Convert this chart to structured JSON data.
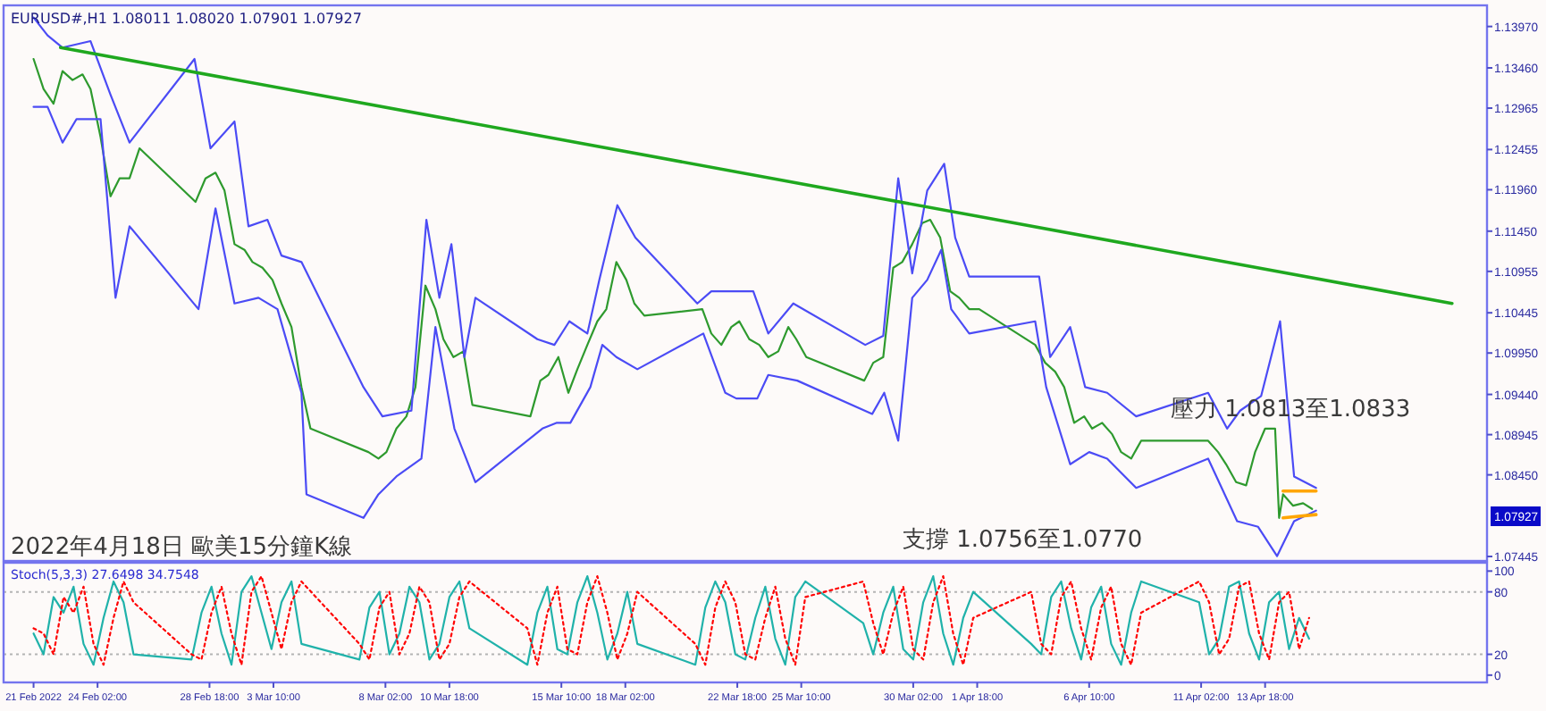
{
  "chart_data": [
    {
      "type": "line",
      "title": "EURUSD#,H1  1.08011 1.08020 1.07901 1.07927",
      "annotations": [
        "2022年4月18日 歐美15分鐘K線",
        "支撐 1.0756至1.0770",
        "壓力 1.0813至1.0833",
        "1.07927"
      ],
      "xlim": [
        "2022-02-20T04:00",
        "2022-04-23T00:00"
      ],
      "ylim": [
        1.0739,
        1.1423
      ],
      "yticks": [
        1.07445,
        {
          "value": 1.0845,
          "label": "1.08450"
        },
        1.08945,
        {
          "value": 1.0944,
          "label": "1.09440"
        },
        {
          "value": 1.0995,
          "label": "1.09950"
        },
        1.10445,
        1.10955,
        {
          "value": 1.1145,
          "label": "1.11450"
        },
        {
          "value": 1.1196,
          "label": "1.11960"
        },
        1.12455,
        1.12965,
        {
          "value": 1.1346,
          "label": "1.13460"
        },
        {
          "value": 1.1397,
          "label": "1.13970"
        }
      ],
      "tick_labels": "y",
      "series": [
        {
          "color": "#2e9a2e",
          "x": [
            "2022-02-21T10:00",
            "2022-02-21T20:00",
            "2022-02-22T06:00",
            "2022-02-22T15:00",
            "2022-02-23T01:00",
            "2022-02-23T11:00",
            "2022-02-23T19:00",
            "2022-02-24T05:00",
            "2022-02-24T15:00",
            "2022-02-25T00:00",
            "2022-02-25T10:00",
            "2022-02-25T20:00",
            "2022-02-28T04:00",
            "2022-02-28T14:00",
            "2022-03-01T00:00",
            "2022-03-01T09:00",
            "2022-03-01T19:00",
            "2022-03-02T05:00",
            "2022-03-02T13:00",
            "2022-03-02T23:00",
            "2022-03-03T09:00",
            "2022-03-03T18:00",
            "2022-03-04T04:00",
            "2022-03-04T14:00",
            "2022-03-04T23:00",
            "2022-03-07T09:00",
            "2022-03-07T19:00",
            "2022-03-08T03:00",
            "2022-03-08T13:00",
            "2022-03-08T23:00",
            "2022-03-09T08:00",
            "2022-03-09T18:00",
            "2022-03-10T04:00",
            "2022-03-10T12:00",
            "2022-03-10T22:00",
            "2022-03-11T08:00",
            "2022-03-11T17:00",
            "2022-03-14T03:00",
            "2022-03-14T13:00",
            "2022-03-14T21:00",
            "2022-03-15T07:00",
            "2022-03-15T17:00",
            "2022-03-16T02:00",
            "2022-03-16T12:00",
            "2022-03-16T22:00",
            "2022-03-17T07:00",
            "2022-03-17T17:00",
            "2022-03-18T03:00",
            "2022-03-18T11:00",
            "2022-03-18T21:00",
            "2022-03-21T07:00",
            "2022-03-21T16:00",
            "2022-03-22T02:00",
            "2022-03-22T12:00",
            "2022-03-22T20:00",
            "2022-03-23T06:00",
            "2022-03-23T16:00",
            "2022-03-24T01:00",
            "2022-03-24T11:00",
            "2022-03-24T21:00",
            "2022-03-25T05:00",
            "2022-03-25T15:00",
            "2022-03-28T01:00",
            "2022-03-28T10:00",
            "2022-03-28T20:00",
            "2022-03-29T00:00",
            "2022-03-29T06:00",
            "2022-03-29T15:00",
            "2022-03-30T01:00",
            "2022-03-30T11:00",
            "2022-03-30T19:00",
            "2022-03-31T05:00",
            "2022-03-31T15:00",
            "2022-04-01T00:00",
            "2022-04-01T10:00",
            "2022-04-01T20:00",
            "2022-04-04T04:00",
            "2022-04-04T14:00",
            "2022-04-05T00:00",
            "2022-04-05T09:00",
            "2022-04-05T19:00",
            "2022-04-06T05:00",
            "2022-04-06T13:00",
            "2022-04-06T23:00",
            "2022-04-07T09:00",
            "2022-04-07T18:00",
            "2022-04-08T04:00",
            "2022-04-08T14:00",
            "2022-04-08T23:00",
            "2022-04-11T09:00",
            "2022-04-11T19:00",
            "2022-04-12T03:00",
            "2022-04-12T13:00",
            "2022-04-12T23:00",
            "2022-04-13T08:00",
            "2022-04-13T18:00",
            "2022-04-14T04:00",
            "2022-04-14T08:00",
            "2022-04-14T12:00",
            "2022-04-14T22:00",
            "2022-04-15T08:00",
            "2022-04-15T17:00"
          ],
          "values": [
            1.1357,
            1.132,
            1.1302,
            1.1342,
            1.1331,
            1.1338,
            1.132,
            1.1261,
            1.1188,
            1.121,
            1.121,
            1.1247,
            1.1181,
            1.121,
            1.1217,
            1.1195,
            1.1129,
            1.1122,
            1.1107,
            1.11,
            1.1085,
            1.1056,
            1.1027,
            1.0953,
            1.0902,
            1.0873,
            1.0865,
            1.0873,
            1.0902,
            1.0917,
            1.0953,
            1.1078,
            1.1049,
            1.1012,
            1.099,
            1.0997,
            1.0931,
            1.0917,
            1.0961,
            1.0968,
            1.099,
            1.0946,
            1.0975,
            1.1005,
            1.1034,
            1.1049,
            1.1107,
            1.1085,
            1.1056,
            1.1041,
            1.1049,
            1.1019,
            1.1005,
            1.1027,
            1.1034,
            1.1012,
            1.1005,
            1.099,
            1.0997,
            1.1027,
            1.1012,
            1.099,
            1.0961,
            1.0983,
            1.099,
            1.1034,
            1.11,
            1.1107,
            1.1129,
            1.1155,
            1.1159,
            1.1137,
            1.1071,
            1.1063,
            1.1049,
            1.1049,
            1.1005,
            1.0983,
            1.0972,
            1.0953,
            1.0909,
            1.0917,
            1.0902,
            1.0909,
            1.0895,
            1.0873,
            1.0865,
            1.0887,
            1.0887,
            1.0887,
            1.0873,
            1.0858,
            1.0836,
            1.0832,
            1.0873,
            1.0902,
            1.0902,
            1.0792,
            1.0821,
            1.0807,
            1.081,
            1.0803
          ]
        },
        {
          "color": "#4b4bf5",
          "x": [
            "2022-02-21T10:00",
            "2022-02-22T00:00",
            "2022-02-22T15:00",
            "2022-02-23T19:00",
            "2022-02-24T15:00",
            "2022-02-25T10:00",
            "2022-02-28T03:00",
            "2022-02-28T19:00",
            "2022-03-01T19:00",
            "2022-03-02T09:00",
            "2022-03-03T04:00",
            "2022-03-03T18:00",
            "2022-03-04T14:00",
            "2022-03-07T04:00",
            "2022-03-07T23:00",
            "2022-03-09T04:00",
            "2022-03-09T19:00",
            "2022-03-10T08:00",
            "2022-03-10T20:00",
            "2022-03-11T09:00",
            "2022-03-11T20:00",
            "2022-03-14T10:00",
            "2022-03-15T03:00",
            "2022-03-15T18:00",
            "2022-03-16T12:00",
            "2022-03-17T00:00",
            "2022-03-17T18:00",
            "2022-03-18T12:00",
            "2022-03-21T02:00",
            "2022-03-21T16:00",
            "2022-03-22T14:00",
            "2022-03-23T10:00",
            "2022-03-24T01:00",
            "2022-03-25T02:00",
            "2022-03-28T02:00",
            "2022-03-28T20:00",
            "2022-03-29T11:00",
            "2022-03-30T01:00",
            "2022-03-30T16:00",
            "2022-03-31T09:00",
            "2022-03-31T20:00",
            "2022-04-01T10:00",
            "2022-04-04T08:00",
            "2022-04-04T19:00",
            "2022-04-05T15:00",
            "2022-04-06T06:00",
            "2022-04-07T04:00",
            "2022-04-08T09:00",
            "2022-04-11T09:00",
            "2022-04-12T04:00",
            "2022-04-12T17:00",
            "2022-04-13T14:00",
            "2022-04-14T09:00",
            "2022-04-14T23:00",
            "2022-04-15T21:00"
          ],
          "values": [
            1.1408,
            1.1386,
            1.1371,
            1.1379,
            1.1313,
            1.1254,
            1.1357,
            1.1247,
            1.128,
            1.1151,
            1.1159,
            1.1115,
            1.1107,
            1.0953,
            1.0917,
            1.0924,
            1.1159,
            1.1063,
            1.1129,
            1.099,
            1.1063,
            1.1012,
            1.1005,
            1.1034,
            1.1019,
            1.1085,
            1.1177,
            1.1137,
            1.1056,
            1.1071,
            1.1071,
            1.1071,
            1.1019,
            1.1056,
            1.1005,
            1.1016,
            1.121,
            1.1093,
            1.1195,
            1.1228,
            1.1137,
            1.1089,
            1.1089,
            1.099,
            1.1027,
            1.0953,
            1.0946,
            1.0917,
            1.0946,
            1.0902,
            1.0924,
            1.0942,
            1.1034,
            1.0843,
            1.0829
          ]
        },
        {
          "color": "#4b4bf5",
          "x": [
            "2022-02-21T10:00",
            "2022-02-22T00:00",
            "2022-02-22T15:00",
            "2022-02-23T05:00",
            "2022-02-24T05:00",
            "2022-02-24T20:00",
            "2022-02-25T10:00",
            "2022-02-28T07:00",
            "2022-03-01T00:00",
            "2022-03-01T19:00",
            "2022-03-02T19:00",
            "2022-03-03T14:00",
            "2022-03-04T14:00",
            "2022-03-04T19:00",
            "2022-03-07T04:00",
            "2022-03-07T19:00",
            "2022-03-08T13:00",
            "2022-03-09T14:00",
            "2022-03-10T04:00",
            "2022-03-10T23:00",
            "2022-03-11T20:00",
            "2022-03-14T15:00",
            "2022-03-15T05:00",
            "2022-03-15T19:00",
            "2022-03-16T15:00",
            "2022-03-17T03:00",
            "2022-03-17T17:00",
            "2022-03-18T14:00",
            "2022-03-21T08:00",
            "2022-03-22T06:00",
            "2022-03-22T17:00",
            "2022-03-23T14:00",
            "2022-03-24T01:00",
            "2022-03-25T06:00",
            "2022-03-28T09:00",
            "2022-03-28T21:00",
            "2022-03-29T11:00",
            "2022-03-30T01:00",
            "2022-03-30T16:00",
            "2022-03-31T06:00",
            "2022-03-31T16:00",
            "2022-04-01T10:00",
            "2022-04-04T04:00",
            "2022-04-04T15:00",
            "2022-04-05T15:00",
            "2022-04-06T10:00",
            "2022-04-07T04:00",
            "2022-04-08T09:00",
            "2022-04-11T09:00",
            "2022-04-12T14:00",
            "2022-04-13T11:00",
            "2022-04-14T06:00",
            "2022-04-14T23:00",
            "2022-04-15T21:00"
          ],
          "values": [
            1.1298,
            1.1298,
            1.1254,
            1.1283,
            1.1283,
            1.1063,
            1.1151,
            1.1049,
            1.1173,
            1.1056,
            1.1063,
            1.1049,
            1.0946,
            1.0821,
            1.0792,
            1.0821,
            1.0843,
            1.0865,
            1.1027,
            1.0902,
            1.0836,
            1.0902,
            1.0909,
            1.0909,
            1.0953,
            1.1005,
            1.099,
            1.0975,
            1.1019,
            1.0946,
            1.0939,
            1.0939,
            1.0968,
            1.0961,
            1.092,
            1.0946,
            1.0887,
            1.1063,
            1.1085,
            1.1122,
            1.1049,
            1.1019,
            1.1034,
            1.0953,
            1.0858,
            1.0873,
            1.0865,
            1.0829,
            1.0865,
            1.0788,
            1.0781,
            1.0745,
            1.0788,
            1.0801
          ]
        },
        {
          "color": "#1fa81f",
          "x": [
            "2022-02-22T13:00",
            "2022-04-21T13:00"
          ],
          "values": [
            1.1371,
            1.1056
          ]
        },
        {
          "color": "#ffa500",
          "x": [
            "2022-04-14T12:00",
            "2022-04-15T21:00"
          ],
          "values": [
            1.0825,
            1.0825
          ]
        },
        {
          "color": "#ffa500",
          "x": [
            "2022-04-14T12:00",
            "2022-04-15T21:00"
          ],
          "values": [
            1.0792,
            1.0796
          ]
        }
      ]
    },
    {
      "type": "line",
      "title": "Stoch(5,3,3) 27.6498 34.7548",
      "xlim": [
        "2022-02-20T04:00",
        "2022-04-23T00:00"
      ],
      "xticks": [
        {
          "value": "2022-02-21T10:00",
          "label": "21 Feb 2022"
        },
        {
          "value": "2022-02-24T02:00",
          "label": "24 Feb 02:00"
        },
        {
          "value": "2022-02-28T18:00",
          "label": "28 Feb 18:00"
        },
        {
          "value": "2022-03-03T10:00",
          "label": "3 Mar 10:00"
        },
        {
          "value": "2022-03-08T02:00",
          "label": "8 Mar 02:00"
        },
        {
          "value": "2022-03-10T18:00",
          "label": "10 Mar 18:00"
        },
        {
          "value": "2022-03-15T10:00",
          "label": "15 Mar 10:00"
        },
        {
          "value": "2022-03-18T02:00",
          "label": "18 Mar 02:00"
        },
        {
          "value": "2022-03-22T18:00",
          "label": "22 Mar 18:00"
        },
        {
          "value": "2022-03-25T10:00",
          "label": "25 Mar 10:00"
        },
        {
          "value": "2022-03-30T02:00",
          "label": "30 Mar 02:00"
        },
        {
          "value": "2022-04-01T18:00",
          "label": "1 Apr 18:00"
        },
        {
          "value": "2022-04-06T10:00",
          "label": "6 Apr 10:00"
        },
        {
          "value": "2022-04-11T02:00",
          "label": "11 Apr 02:00"
        },
        {
          "value": "2022-04-13T18:00",
          "label": "13 Apr 18:00"
        }
      ],
      "ylim": [
        -7,
        108
      ],
      "yticks": [
        0,
        20,
        80,
        100
      ],
      "ref_lines": [
        {
          "axis": "y",
          "value": 80,
          "color": "#b4b4b4",
          "line_style": "dotted"
        },
        {
          "axis": "y",
          "value": 20,
          "color": "#b4b4b4",
          "line_style": "dotted"
        }
      ],
      "x": [
        "2022-02-21T10:00",
        "2022-02-21T20:00",
        "2022-02-22T06:00",
        "2022-02-22T16:00",
        "2022-02-23T02:00",
        "2022-02-23T12:00",
        "2022-02-23T22:00",
        "2022-02-24T08:00",
        "2022-02-24T18:00",
        "2022-02-25T04:00",
        "2022-02-25T14:00",
        "2022-02-28T00:00",
        "2022-02-28T10:00",
        "2022-02-28T20:00",
        "2022-03-01T06:00",
        "2022-03-01T16:00",
        "2022-03-02T02:00",
        "2022-03-02T12:00",
        "2022-03-02T22:00",
        "2022-03-03T08:00",
        "2022-03-03T18:00",
        "2022-03-04T04:00",
        "2022-03-04T14:00",
        "2022-03-07T00:00",
        "2022-03-07T10:00",
        "2022-03-07T20:00",
        "2022-03-08T06:00",
        "2022-03-08T16:00",
        "2022-03-09T02:00",
        "2022-03-09T12:00",
        "2022-03-09T22:00",
        "2022-03-10T08:00",
        "2022-03-10T18:00",
        "2022-03-11T04:00",
        "2022-03-11T14:00",
        "2022-03-14T00:00",
        "2022-03-14T10:00",
        "2022-03-14T20:00",
        "2022-03-15T06:00",
        "2022-03-15T16:00",
        "2022-03-16T02:00",
        "2022-03-16T12:00",
        "2022-03-16T22:00",
        "2022-03-17T08:00",
        "2022-03-17T18:00",
        "2022-03-18T04:00",
        "2022-03-18T14:00",
        "2022-03-21T00:00",
        "2022-03-21T10:00",
        "2022-03-21T20:00",
        "2022-03-22T06:00",
        "2022-03-22T16:00",
        "2022-03-23T02:00",
        "2022-03-23T12:00",
        "2022-03-23T22:00",
        "2022-03-24T08:00",
        "2022-03-24T18:00",
        "2022-03-25T04:00",
        "2022-03-25T14:00",
        "2022-03-28T00:00",
        "2022-03-28T10:00",
        "2022-03-28T20:00",
        "2022-03-29T06:00",
        "2022-03-29T16:00",
        "2022-03-30T02:00",
        "2022-03-30T12:00",
        "2022-03-30T22:00",
        "2022-03-31T08:00",
        "2022-03-31T18:00",
        "2022-04-01T04:00",
        "2022-04-01T14:00",
        "2022-04-04T00:00",
        "2022-04-04T10:00",
        "2022-04-04T20:00",
        "2022-04-05T06:00",
        "2022-04-05T16:00",
        "2022-04-06T02:00",
        "2022-04-06T12:00",
        "2022-04-06T22:00",
        "2022-04-07T08:00",
        "2022-04-07T18:00",
        "2022-04-08T04:00",
        "2022-04-08T14:00",
        "2022-04-11T00:00",
        "2022-04-11T10:00",
        "2022-04-11T20:00",
        "2022-04-12T06:00",
        "2022-04-12T16:00",
        "2022-04-13T02:00",
        "2022-04-13T12:00",
        "2022-04-13T22:00",
        "2022-04-14T08:00",
        "2022-04-14T18:00",
        "2022-04-15T04:00",
        "2022-04-15T14:00"
      ],
      "series": [
        {
          "color": "#20b2aa",
          "line_style": "solid",
          "values": [
            40,
            20,
            75,
            60,
            85,
            30,
            10,
            55,
            90,
            70,
            20,
            15,
            60,
            85,
            40,
            10,
            80,
            95,
            60,
            25,
            70,
            90,
            30,
            15,
            65,
            80,
            20,
            40,
            85,
            70,
            15,
            30,
            75,
            90,
            45,
            10,
            60,
            85,
            25,
            20,
            70,
            95,
            60,
            15,
            40,
            80,
            30,
            10,
            65,
            90,
            70,
            20,
            15,
            55,
            85,
            35,
            10,
            75,
            90,
            50,
            20,
            60,
            85,
            25,
            15,
            70,
            95,
            40,
            10,
            55,
            80,
            30,
            20,
            75,
            90,
            45,
            15,
            65,
            85,
            30,
            10,
            60,
            90,
            70,
            20,
            35,
            85,
            90,
            40,
            15,
            70,
            80,
            25,
            55,
            35
          ]
        },
        {
          "color": "#ff0000",
          "line_style": "dotted",
          "values": [
            45,
            40,
            20,
            75,
            60,
            85,
            30,
            10,
            55,
            90,
            70,
            20,
            15,
            60,
            85,
            40,
            10,
            80,
            95,
            60,
            25,
            70,
            90,
            30,
            15,
            65,
            80,
            20,
            40,
            85,
            70,
            15,
            30,
            75,
            90,
            45,
            10,
            60,
            85,
            25,
            20,
            70,
            95,
            60,
            15,
            40,
            80,
            30,
            10,
            65,
            90,
            70,
            20,
            15,
            55,
            85,
            35,
            10,
            75,
            90,
            50,
            20,
            60,
            85,
            25,
            15,
            70,
            95,
            40,
            10,
            55,
            80,
            30,
            20,
            75,
            90,
            45,
            15,
            65,
            85,
            30,
            10,
            60,
            90,
            70,
            20,
            35,
            85,
            90,
            40,
            15,
            70,
            80,
            25,
            55
          ]
        }
      ]
    }
  ]
}
